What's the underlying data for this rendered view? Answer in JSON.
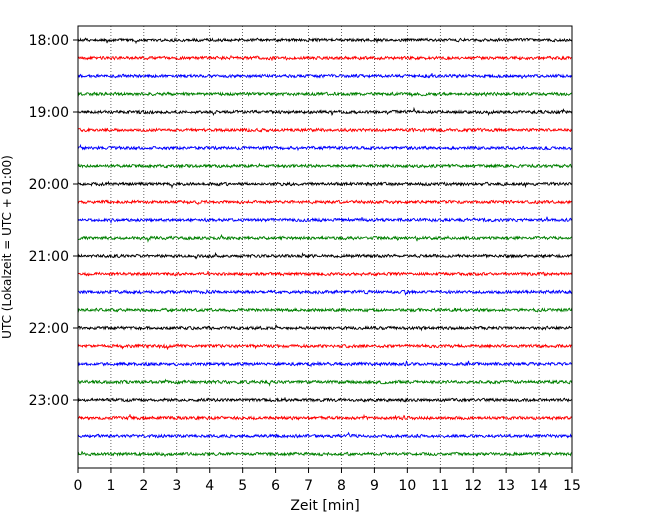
{
  "chart_data": {
    "type": "line",
    "subtype": "helicorder",
    "title": "",
    "xlabel": "Zeit  [min]",
    "ylabel": "UTC (Lokalzeit = UTC + 01:00)",
    "xlim": [
      0,
      15
    ],
    "x_ticks": [
      0,
      1,
      2,
      3,
      4,
      5,
      6,
      7,
      8,
      9,
      10,
      11,
      12,
      13,
      14,
      15
    ],
    "x_tick_labels": [
      "0",
      "1",
      "2",
      "3",
      "4",
      "5",
      "6",
      "7",
      "8",
      "9",
      "10",
      "11",
      "12",
      "13",
      "14",
      "15"
    ],
    "x_grid": true,
    "grid_style": "dotted",
    "y_tick_labels": [
      "18:00",
      "19:00",
      "20:00",
      "21:00",
      "22:00",
      "23:00"
    ],
    "trace_interval_minutes": 15,
    "trace_start_times": [
      "18:00",
      "18:15",
      "18:30",
      "18:45",
      "19:00",
      "19:15",
      "19:30",
      "19:45",
      "20:00",
      "20:15",
      "20:30",
      "20:45",
      "21:00",
      "21:15",
      "21:30",
      "21:45",
      "22:00",
      "22:15",
      "22:30",
      "22:45",
      "23:00",
      "23:15",
      "23:30",
      "23:45"
    ],
    "trace_color_cycle": [
      "#000000",
      "#ff0000",
      "#0000ff",
      "#008000"
    ],
    "trace_amplitude_level": "low background noise"
  }
}
